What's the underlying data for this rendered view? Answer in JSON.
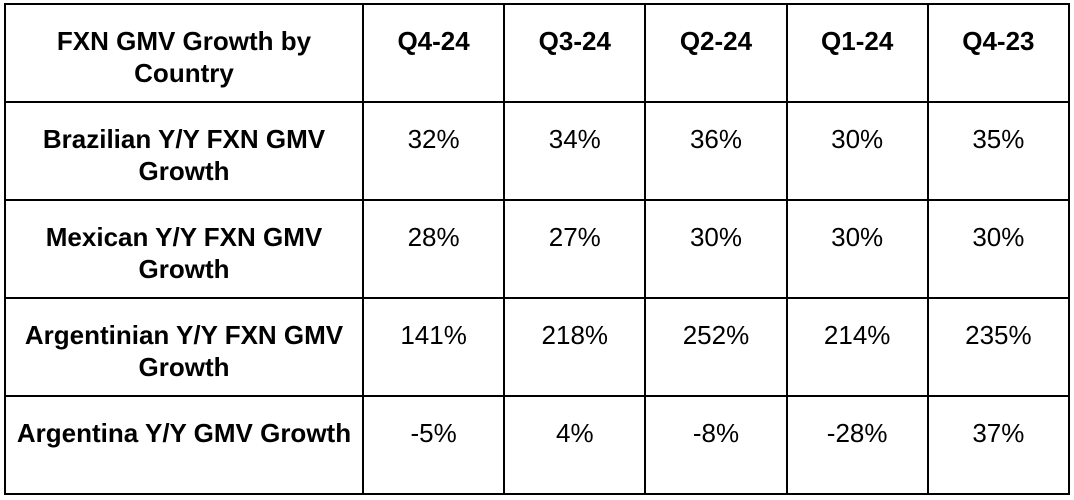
{
  "table": {
    "header": [
      "FXN GMV Growth by Country",
      "Q4-24",
      "Q3-24",
      "Q2-24",
      "Q1-24",
      "Q4-23"
    ],
    "rows": [
      [
        "Brazilian Y/Y FXN GMV Growth",
        "32%",
        "34%",
        "36%",
        "30%",
        "35%"
      ],
      [
        "Mexican Y/Y FXN GMV Growth",
        "28%",
        "27%",
        "30%",
        "30%",
        "30%"
      ],
      [
        "Argentinian Y/Y FXN GMV Growth",
        "141%",
        "218%",
        "252%",
        "214%",
        "235%"
      ],
      [
        "Argentina Y/Y GMV Growth",
        "-5%",
        "4%",
        "-8%",
        "-28%",
        "37%"
      ]
    ]
  }
}
